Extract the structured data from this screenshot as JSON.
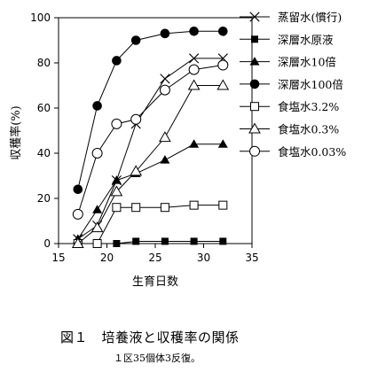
{
  "chart_data": {
    "type": "line",
    "xlabel": "生育日数",
    "ylabel": "収穫率(%)",
    "xlim": [
      15,
      35
    ],
    "ylim": [
      0,
      100
    ],
    "xticks": [
      15,
      20,
      25,
      30,
      35
    ],
    "yticks": [
      0,
      20,
      40,
      60,
      80,
      100
    ],
    "grid": false,
    "legend_position": "right",
    "series": [
      {
        "name": "蒸留水(慣行)",
        "marker": "x",
        "x": [
          17,
          19,
          21,
          23,
          26,
          29,
          32
        ],
        "y": [
          2,
          8,
          28,
          53,
          73,
          82,
          82
        ]
      },
      {
        "name": "深層水原液",
        "marker": "filled-square",
        "x": [
          21,
          23,
          26,
          29,
          32
        ],
        "y": [
          0,
          1,
          1,
          1,
          1
        ]
      },
      {
        "name": "深層水10倍",
        "marker": "filled-triangle",
        "x": [
          17,
          19,
          21,
          23,
          26,
          29,
          32
        ],
        "y": [
          2,
          15,
          28,
          31,
          37,
          44,
          44
        ]
      },
      {
        "name": "深層水100倍",
        "marker": "filled-circle",
        "x": [
          17,
          19,
          21,
          23,
          26,
          29,
          32
        ],
        "y": [
          24,
          61,
          81,
          90,
          93,
          94,
          94
        ]
      },
      {
        "name": "食塩水3.2%",
        "marker": "open-square",
        "x": [
          17,
          19,
          21,
          23,
          26,
          29,
          32
        ],
        "y": [
          0,
          0,
          16,
          16,
          16,
          17,
          17
        ]
      },
      {
        "name": "食塩水0.3%",
        "marker": "open-triangle",
        "x": [
          17,
          19,
          21,
          23,
          26,
          29,
          32
        ],
        "y": [
          0,
          7,
          23,
          32,
          47,
          70,
          70
        ]
      },
      {
        "name": "食塩水0.03%",
        "marker": "open-circle",
        "x": [
          17,
          19,
          21,
          23,
          26,
          29,
          32
        ],
        "y": [
          13,
          40,
          53,
          55,
          68,
          77,
          79
        ]
      }
    ]
  },
  "caption": "図１　培養液と収穫率の関係",
  "note": "１区35個体3反復。"
}
